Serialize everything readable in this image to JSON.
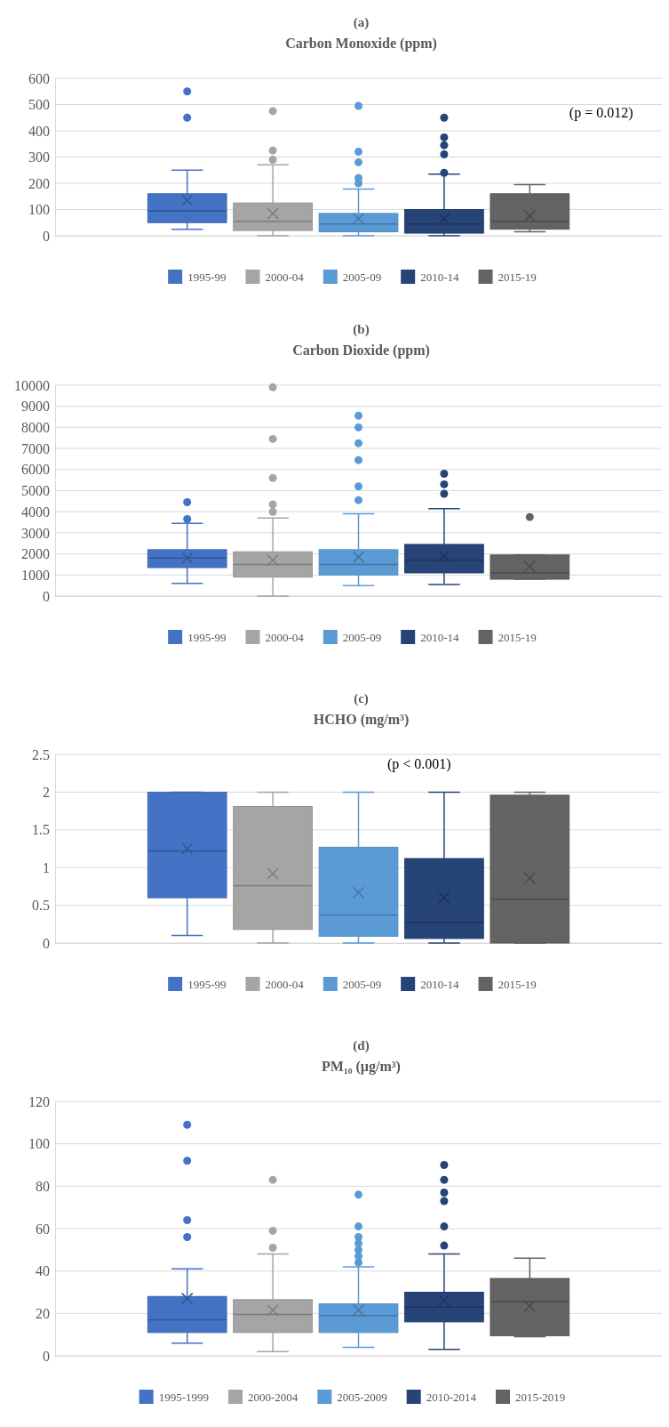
{
  "chart_data": [
    {
      "type": "box",
      "title": "(a)",
      "subtitle": "Carbon Monoxide (ppm)",
      "categories": [
        null
      ],
      "ylim": [
        0,
        600
      ],
      "yticks": [
        0,
        100,
        200,
        300,
        400,
        500,
        600
      ],
      "grid": "y",
      "legend": "bottom",
      "annotations": [
        "(p = 0.012)"
      ],
      "series": [
        {
          "name": "1995-99",
          "color": "#4472c4",
          "boxes": [
            {
              "low": 25,
              "q1": 50,
              "median": 95,
              "q3": 160,
              "high": 250,
              "mean": 135,
              "outliers": [
                450,
                550
              ]
            }
          ]
        },
        {
          "name": "2000-04",
          "color": "#a5a5a5",
          "boxes": [
            {
              "low": 0,
              "q1": 20,
              "median": 55,
              "q3": 125,
              "high": 270,
              "mean": 85,
              "outliers": [
                290,
                325,
                475
              ]
            }
          ]
        },
        {
          "name": "2005-09",
          "color": "#5b9bd5",
          "boxes": [
            {
              "low": 0,
              "q1": 15,
              "median": 45,
              "q3": 85,
              "high": 178,
              "mean": 65,
              "outliers": [
                200,
                220,
                280,
                320,
                495
              ]
            }
          ]
        },
        {
          "name": "2010-14",
          "color": "#264478",
          "boxes": [
            {
              "low": 0,
              "q1": 10,
              "median": 45,
              "q3": 100,
              "high": 235,
              "mean": 65,
              "outliers": [
                240,
                310,
                345,
                375,
                450
              ]
            }
          ]
        },
        {
          "name": "2015-19",
          "color": "#636363",
          "boxes": [
            {
              "low": 15,
              "q1": 25,
              "median": 55,
              "q3": 160,
              "high": 195,
              "mean": 75
            }
          ]
        }
      ]
    },
    {
      "type": "box",
      "title": "(b)",
      "subtitle": "Carbon Dioxide (ppm)",
      "categories": [
        null
      ],
      "ylim": [
        0,
        10000
      ],
      "yticks": [
        0,
        1000,
        2000,
        3000,
        4000,
        5000,
        6000,
        7000,
        8000,
        9000,
        10000
      ],
      "grid": "y",
      "legend": "bottom",
      "series": [
        {
          "name": "1995-99",
          "color": "#4472c4",
          "boxes": [
            {
              "low": 600,
              "q1": 1350,
              "median": 1800,
              "q3": 2200,
              "high": 3450,
              "mean": 1800,
              "outliers": [
                3650,
                4450
              ]
            }
          ]
        },
        {
          "name": "2000-04",
          "color": "#a5a5a5",
          "boxes": [
            {
              "low": 0,
              "q1": 900,
              "median": 1500,
              "q3": 2100,
              "high": 3700,
              "mean": 1700,
              "outliers": [
                4000,
                4350,
                5600,
                7450,
                9900
              ]
            }
          ]
        },
        {
          "name": "2005-09",
          "color": "#5b9bd5",
          "boxes": [
            {
              "low": 500,
              "q1": 1000,
              "median": 1500,
              "q3": 2200,
              "high": 3900,
              "mean": 1850,
              "outliers": [
                4550,
                5200,
                6450,
                7250,
                8000,
                8550
              ]
            }
          ]
        },
        {
          "name": "2010-14",
          "color": "#264478",
          "boxes": [
            {
              "low": 550,
              "q1": 1100,
              "median": 1700,
              "q3": 2450,
              "high": 4150,
              "mean": 1900,
              "outliers": [
                4850,
                5300,
                5800
              ]
            }
          ]
        },
        {
          "name": "2015-19",
          "color": "#636363",
          "boxes": [
            {
              "low": 800,
              "q1": 800,
              "median": 1100,
              "q3": 1950,
              "high": 1950,
              "mean": 1400,
              "outliers": [
                3750
              ]
            }
          ]
        }
      ]
    },
    {
      "type": "box",
      "title": "(c)",
      "subtitle": "HCHO (mg/m³)",
      "categories": [
        null
      ],
      "ylim": [
        0,
        2.5
      ],
      "yticks": [
        0,
        0.5,
        1,
        1.5,
        2,
        2.5
      ],
      "grid": "y",
      "legend": "bottom",
      "annotations": [
        "(p < 0.001)"
      ],
      "series": [
        {
          "name": "1995-99",
          "color": "#4472c4",
          "boxes": [
            {
              "low": 0.1,
              "q1": 0.6,
              "median": 1.22,
              "q3": 2,
              "high": 2,
              "mean": 1.25
            }
          ]
        },
        {
          "name": "2000-04",
          "color": "#a5a5a5",
          "boxes": [
            {
              "low": 0,
              "q1": 0.18,
              "median": 0.76,
              "q3": 1.81,
              "high": 2,
              "mean": 0.92
            }
          ]
        },
        {
          "name": "2005-09",
          "color": "#5b9bd5",
          "boxes": [
            {
              "low": 0,
              "q1": 0.09,
              "median": 0.37,
              "q3": 1.27,
              "high": 2,
              "mean": 0.67
            }
          ]
        },
        {
          "name": "2010-14",
          "color": "#264478",
          "boxes": [
            {
              "low": 0,
              "q1": 0.06,
              "median": 0.27,
              "q3": 1.12,
              "high": 2,
              "mean": 0.6
            }
          ]
        },
        {
          "name": "2015-19",
          "color": "#636363",
          "boxes": [
            {
              "low": 0,
              "q1": 0,
              "median": 0.58,
              "q3": 1.96,
              "high": 2,
              "mean": 0.86
            }
          ]
        }
      ]
    },
    {
      "type": "box",
      "title": "(d)",
      "subtitle": "PM₁₀ (µg/m³)",
      "categories": [
        null
      ],
      "ylim": [
        0,
        120
      ],
      "yticks": [
        0,
        20,
        40,
        60,
        80,
        100,
        120
      ],
      "grid": "y",
      "legend": "bottom",
      "series": [
        {
          "name": "1995-1999",
          "color": "#4472c4",
          "boxes": [
            {
              "low": 6,
              "q1": 11,
              "median": 17,
              "q3": 28,
              "high": 41,
              "mean": 27,
              "outliers": [
                56,
                64,
                92,
                109
              ]
            }
          ]
        },
        {
          "name": "2000-2004",
          "color": "#a5a5a5",
          "boxes": [
            {
              "low": 2,
              "q1": 11,
              "median": 19.5,
              "q3": 26.5,
              "high": 48,
              "mean": 21.5,
              "outliers": [
                51,
                59,
                83
              ]
            }
          ]
        },
        {
          "name": "2005-2009",
          "color": "#5b9bd5",
          "boxes": [
            {
              "low": 4,
              "q1": 11,
              "median": 19,
              "q3": 24.5,
              "high": 42,
              "mean": 21.5,
              "outliers": [
                44,
                47,
                50,
                53,
                56,
                61,
                76
              ]
            }
          ]
        },
        {
          "name": "2010-2014",
          "color": "#264478",
          "boxes": [
            {
              "low": 3,
              "q1": 16,
              "median": 23,
              "q3": 30,
              "high": 48,
              "mean": 26,
              "outliers": [
                52,
                61,
                73,
                77,
                83,
                90
              ]
            }
          ]
        },
        {
          "name": "2015-2019",
          "color": "#636363",
          "boxes": [
            {
              "low": 9,
              "q1": 9.5,
              "median": 25.5,
              "q3": 36.5,
              "high": 46,
              "mean": 23.5
            }
          ]
        }
      ]
    }
  ]
}
